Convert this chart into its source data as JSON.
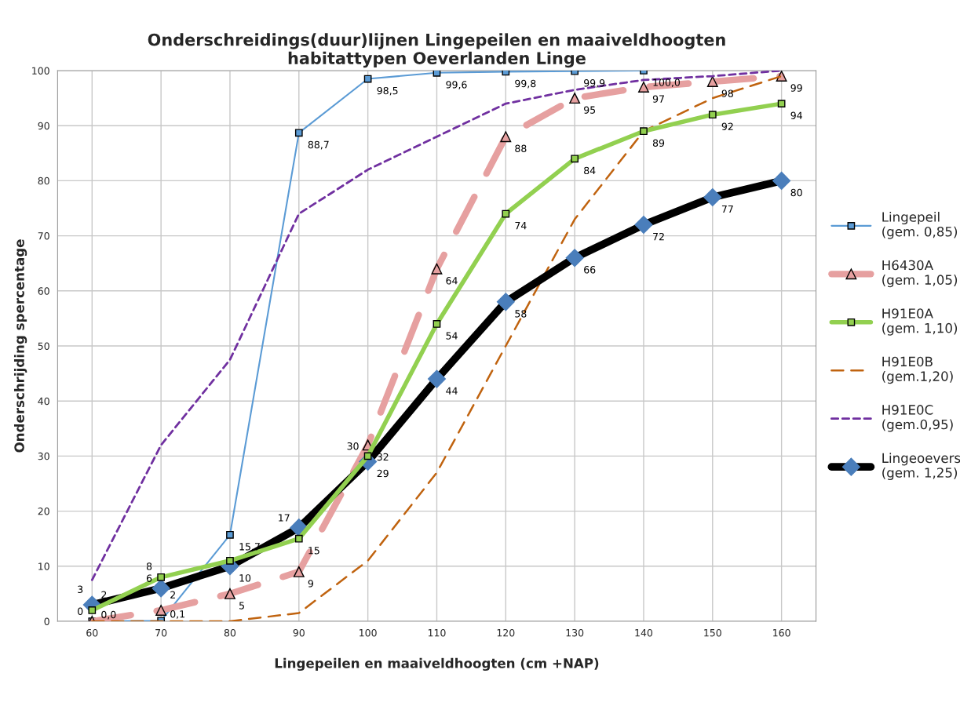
{
  "chart_data": {
    "type": "line",
    "title": "Onderschreidings(duur)lijnen Lingepeilen en maaiveldhoogten\nhabitattypen Oeverlanden Linge",
    "xlabel": "Lingepeilen en maaiveldhoogten (cm +NAP)",
    "ylabel": "Onderschrijding spercentage",
    "categories": [
      "60",
      "70",
      "80",
      "90",
      "100",
      "110",
      "120",
      "130",
      "140",
      "150",
      "160"
    ],
    "ylim": [
      0,
      100
    ],
    "yticks": [
      0,
      10,
      20,
      30,
      40,
      50,
      60,
      70,
      80,
      90,
      100
    ],
    "grid": true,
    "legend": "right",
    "series": [
      {
        "name": "Lingepeil\n(gem. 0,85)",
        "color": "#5b9bd5",
        "marker": "square",
        "line_style": "solid",
        "values": [
          0.0,
          0.1,
          15.7,
          88.7,
          98.5,
          99.6,
          99.8,
          99.9,
          100.0,
          null,
          null
        ],
        "value_labels": [
          "0,0",
          "0,1",
          "15,7",
          "88,7",
          "98,5",
          "99,6",
          "99,8",
          "99,9",
          "100,0",
          null,
          null
        ]
      },
      {
        "name": "H6430A\n(gem. 1,05)",
        "color": "#e6a0a0",
        "marker": "triangle",
        "line_style": "dashed",
        "values": [
          0,
          2,
          5,
          9,
          32,
          64,
          88,
          95,
          97,
          98,
          99
        ],
        "value_labels": [
          "0",
          "2",
          "5",
          "9",
          "32",
          "64",
          "88",
          "95",
          "97",
          "98",
          "99"
        ]
      },
      {
        "name": "H91E0A\n(gem. 1,10)",
        "color": "#92d050",
        "marker": "square",
        "line_style": "solid",
        "values": [
          2,
          8,
          11,
          15,
          30,
          54,
          74,
          84,
          89,
          92,
          94
        ],
        "value_labels": [
          "2",
          "8",
          null,
          "15",
          "30",
          "54",
          "74",
          "84",
          "89",
          "92",
          "94"
        ]
      },
      {
        "name": "H91E0B\n(gem.1,20)",
        "color": "#c0630f",
        "marker": "none",
        "line_style": "dashed",
        "values": [
          0,
          0,
          0,
          1.5,
          11,
          27,
          50,
          73,
          89,
          95,
          99
        ]
      },
      {
        "name": "H91E0C\n(gem.0,95)",
        "color": "#7030a0",
        "marker": "none",
        "line_style": "dotted",
        "values": [
          7.5,
          32,
          47.5,
          74,
          82,
          88,
          94,
          96.5,
          98.3,
          99,
          100
        ]
      },
      {
        "name": "Lingeoevers\n(gem. 1,25)",
        "color": "#000000",
        "marker": "diamond",
        "line_style": "solid",
        "values": [
          3,
          6,
          10,
          17,
          29,
          44,
          58,
          66,
          72,
          77,
          80
        ],
        "value_labels": [
          "3",
          "6",
          "10",
          "17",
          "29",
          "44",
          "58",
          "66",
          "72",
          "77",
          "80"
        ]
      }
    ]
  }
}
